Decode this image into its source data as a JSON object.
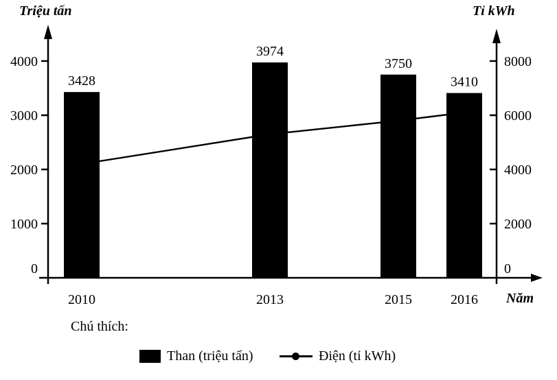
{
  "chart_data": {
    "type": "bar",
    "categories": [
      "2010",
      "2013",
      "2015",
      "2016"
    ],
    "series": [
      {
        "name": "Than (triệu tấn)",
        "type": "bar",
        "axis": "left",
        "values": [
          3428,
          3974,
          3750,
          3410
        ]
      },
      {
        "name": "Điện (tỉ kWh)",
        "type": "line",
        "axis": "right",
        "values": [
          4200,
          5300,
          5800,
          6100
        ],
        "values_estimated": true
      }
    ],
    "bar_value_labels": [
      "3428",
      "3974",
      "3750",
      "3410"
    ],
    "left_axis": {
      "title": "Triệu tấn",
      "ticks": [
        0,
        1000,
        2000,
        3000,
        4000
      ],
      "range": [
        0,
        4600
      ]
    },
    "right_axis": {
      "title": "Tỉ kWh",
      "ticks": [
        0,
        2000,
        4000,
        6000,
        8000
      ],
      "range": [
        0,
        9200
      ]
    },
    "xlabel": "Năm",
    "legend_title": "Chú thích:",
    "legend": [
      {
        "label": "Than (triệu tấn)",
        "swatch": "black-square"
      },
      {
        "label": "Điện (tỉ kWh)",
        "swatch": "line-dot-marker"
      }
    ],
    "colors": {
      "bar": "#000000",
      "line": "#000000",
      "background": "#ffffff",
      "text": "#000000"
    },
    "grid": false,
    "legend_position": "bottom"
  }
}
